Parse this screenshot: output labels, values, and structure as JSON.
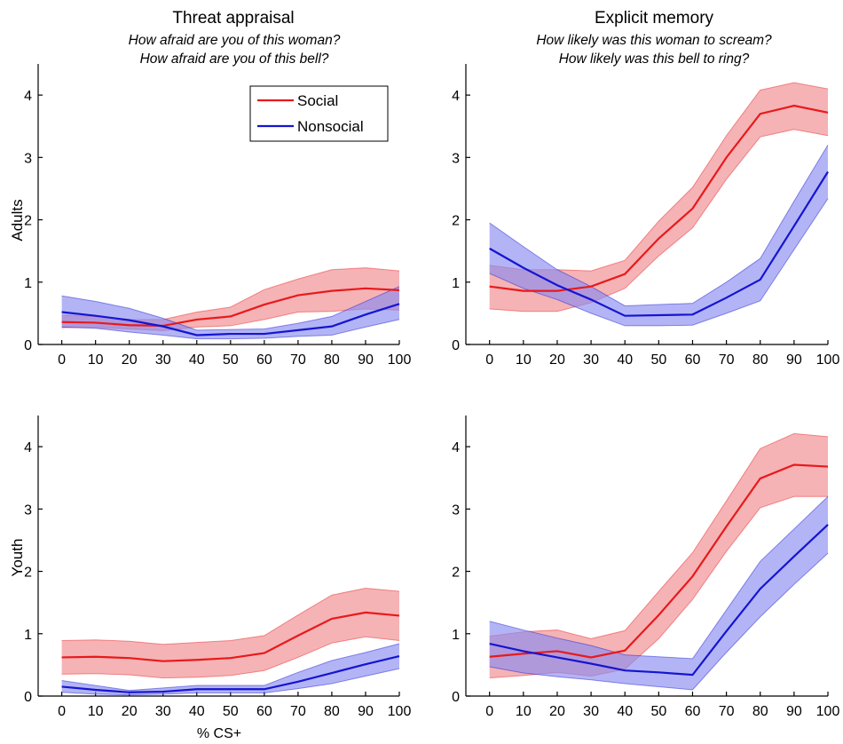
{
  "columns": [
    {
      "title": "Threat appraisal",
      "subtitle_lines": [
        "How afraid are you of this woman?",
        "How afraid are you of this bell?"
      ]
    },
    {
      "title": "Explicit memory",
      "subtitle_lines": [
        "How likely was this woman to scream?",
        "How likely was this bell to ring?"
      ]
    }
  ],
  "rows": [
    "Adults",
    "Youth"
  ],
  "xlabel": "% CS+",
  "legend": [
    {
      "name": "Social",
      "color": "#e8191c"
    },
    {
      "name": "Nonsocial",
      "color": "#1515d0"
    }
  ],
  "colors": {
    "social": "#e8191c",
    "nonsocial": "#1515d0",
    "social_band": "#f08a8d",
    "nonsocial_band": "#8a8cf0"
  },
  "chart_data": [
    {
      "type": "line",
      "panel": "Threat appraisal / Adults",
      "x": [
        0,
        10,
        20,
        30,
        40,
        50,
        60,
        70,
        80,
        90,
        100
      ],
      "xlim": [
        -7,
        100
      ],
      "ylim": [
        0,
        4.5
      ],
      "yticks": [
        0,
        1,
        2,
        3,
        4
      ],
      "series": [
        {
          "name": "Social",
          "values": [
            0.36,
            0.35,
            0.31,
            0.3,
            0.4,
            0.45,
            0.64,
            0.79,
            0.86,
            0.9,
            0.87
          ],
          "lower": [
            0.27,
            0.27,
            0.25,
            0.22,
            0.28,
            0.3,
            0.4,
            0.52,
            0.53,
            0.57,
            0.55
          ],
          "upper": [
            0.47,
            0.45,
            0.4,
            0.4,
            0.52,
            0.6,
            0.88,
            1.05,
            1.2,
            1.23,
            1.18
          ]
        },
        {
          "name": "Nonsocial",
          "values": [
            0.52,
            0.46,
            0.39,
            0.29,
            0.15,
            0.17,
            0.17,
            0.23,
            0.29,
            0.48,
            0.65
          ],
          "lower": [
            0.28,
            0.26,
            0.2,
            0.15,
            0.09,
            0.09,
            0.1,
            0.13,
            0.15,
            0.28,
            0.4
          ],
          "upper": [
            0.78,
            0.69,
            0.58,
            0.42,
            0.23,
            0.24,
            0.25,
            0.34,
            0.45,
            0.69,
            0.93
          ]
        }
      ]
    },
    {
      "type": "line",
      "panel": "Explicit memory / Adults",
      "x": [
        0,
        10,
        20,
        30,
        40,
        50,
        60,
        70,
        80,
        90,
        100
      ],
      "xlim": [
        -7,
        100
      ],
      "ylim": [
        0,
        4.5
      ],
      "yticks": [
        0,
        1,
        2,
        3,
        4
      ],
      "series": [
        {
          "name": "Social",
          "values": [
            0.93,
            0.86,
            0.86,
            0.93,
            1.13,
            1.7,
            2.18,
            3.0,
            3.7,
            3.83,
            3.72
          ],
          "lower": [
            0.57,
            0.53,
            0.53,
            0.67,
            0.9,
            1.42,
            1.87,
            2.65,
            3.33,
            3.45,
            3.35
          ],
          "upper": [
            1.27,
            1.2,
            1.2,
            1.18,
            1.35,
            1.98,
            2.52,
            3.35,
            4.08,
            4.2,
            4.1
          ]
        },
        {
          "name": "Nonsocial",
          "values": [
            1.54,
            1.23,
            0.95,
            0.72,
            0.46,
            0.47,
            0.48,
            0.75,
            1.04,
            1.9,
            2.77
          ],
          "lower": [
            1.14,
            0.9,
            0.72,
            0.5,
            0.3,
            0.3,
            0.31,
            0.5,
            0.7,
            1.52,
            2.34
          ],
          "upper": [
            1.95,
            1.57,
            1.2,
            0.93,
            0.62,
            0.64,
            0.66,
            1.0,
            1.38,
            2.3,
            3.2
          ]
        }
      ]
    },
    {
      "type": "line",
      "panel": "Threat appraisal / Youth",
      "x": [
        0,
        10,
        20,
        30,
        40,
        50,
        60,
        70,
        80,
        90,
        100
      ],
      "xlim": [
        -7,
        100
      ],
      "ylim": [
        0,
        4.5
      ],
      "yticks": [
        0,
        1,
        2,
        3,
        4
      ],
      "series": [
        {
          "name": "Social",
          "values": [
            0.62,
            0.63,
            0.61,
            0.56,
            0.58,
            0.61,
            0.69,
            0.97,
            1.24,
            1.34,
            1.29
          ],
          "lower": [
            0.35,
            0.36,
            0.34,
            0.29,
            0.3,
            0.33,
            0.41,
            0.62,
            0.85,
            0.95,
            0.89
          ],
          "upper": [
            0.89,
            0.9,
            0.88,
            0.83,
            0.86,
            0.89,
            0.97,
            1.3,
            1.62,
            1.73,
            1.68
          ]
        },
        {
          "name": "Nonsocial",
          "values": [
            0.15,
            0.1,
            0.06,
            0.07,
            0.11,
            0.11,
            0.11,
            0.23,
            0.37,
            0.51,
            0.64
          ],
          "lower": [
            0.06,
            0.03,
            0.02,
            0.03,
            0.05,
            0.05,
            0.05,
            0.12,
            0.2,
            0.32,
            0.44
          ],
          "upper": [
            0.25,
            0.17,
            0.09,
            0.13,
            0.17,
            0.17,
            0.17,
            0.38,
            0.57,
            0.7,
            0.84
          ]
        }
      ]
    },
    {
      "type": "line",
      "panel": "Explicit memory / Youth",
      "x": [
        0,
        10,
        20,
        30,
        40,
        50,
        60,
        70,
        80,
        90,
        100
      ],
      "xlim": [
        -7,
        100
      ],
      "ylim": [
        0,
        4.5
      ],
      "yticks": [
        0,
        1,
        2,
        3,
        4
      ],
      "series": [
        {
          "name": "Social",
          "values": [
            0.63,
            0.68,
            0.72,
            0.62,
            0.73,
            1.3,
            1.92,
            2.72,
            3.49,
            3.71,
            3.68
          ],
          "lower": [
            0.29,
            0.33,
            0.38,
            0.32,
            0.43,
            0.92,
            1.55,
            2.32,
            3.02,
            3.2,
            3.2
          ],
          "upper": [
            0.96,
            1.03,
            1.06,
            0.92,
            1.05,
            1.68,
            2.3,
            3.13,
            3.97,
            4.21,
            4.16
          ]
        },
        {
          "name": "Nonsocial",
          "values": [
            0.84,
            0.72,
            0.62,
            0.52,
            0.41,
            0.38,
            0.34,
            1.04,
            1.72,
            2.24,
            2.75
          ],
          "lower": [
            0.47,
            0.37,
            0.31,
            0.26,
            0.2,
            0.15,
            0.1,
            0.7,
            1.27,
            1.79,
            2.29
          ],
          "upper": [
            1.2,
            1.06,
            0.93,
            0.81,
            0.66,
            0.63,
            0.6,
            1.38,
            2.16,
            2.68,
            3.2
          ]
        }
      ]
    }
  ]
}
